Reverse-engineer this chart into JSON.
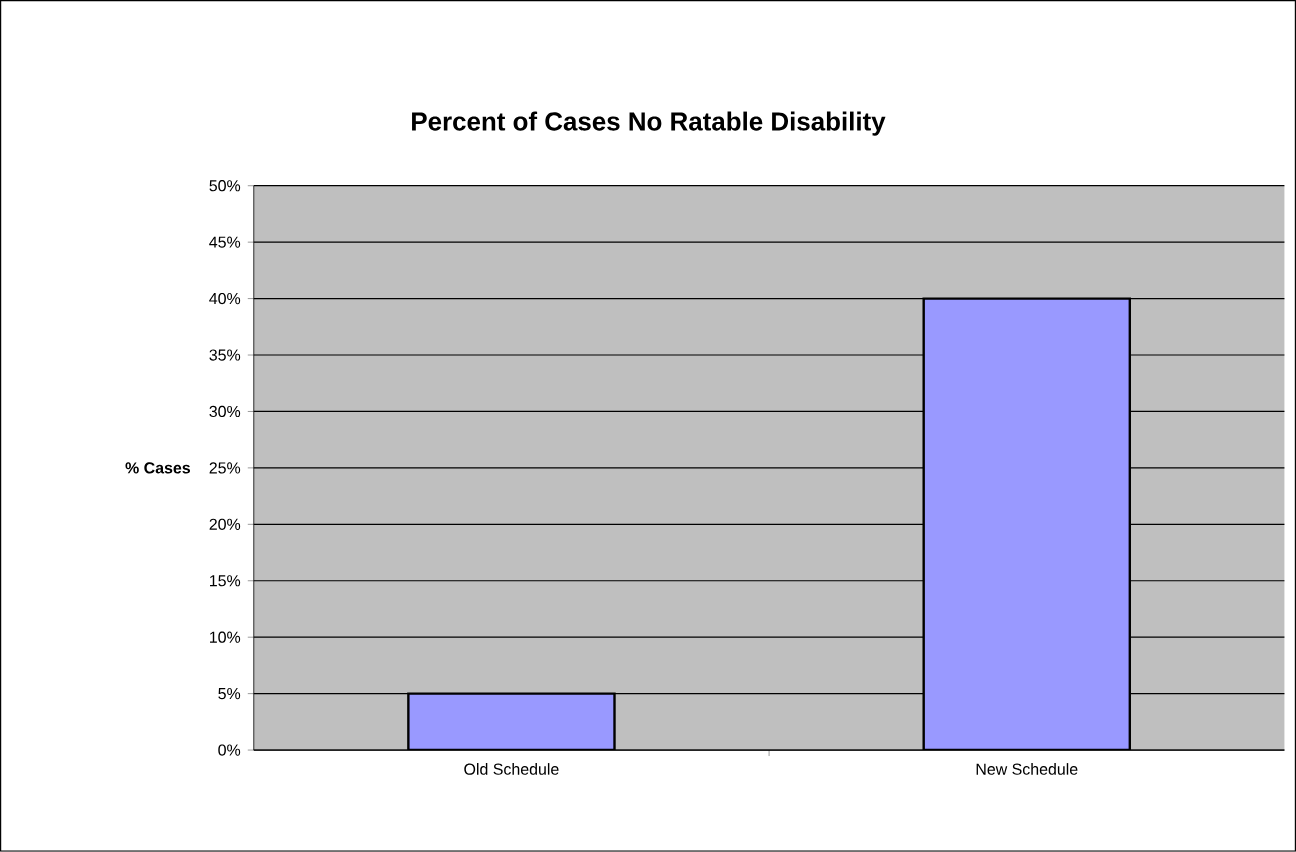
{
  "chart_data": {
    "type": "bar",
    "title": "Percent of Cases No Ratable Disability",
    "ylabel": "% Cases",
    "categories": [
      "Old Schedule",
      "New Schedule"
    ],
    "values": [
      5,
      40
    ],
    "color": "#9999ff",
    "ylim": [
      0,
      50
    ],
    "yticks": [
      {
        "value": 0,
        "label": "0%"
      },
      {
        "value": 5,
        "label": "5%"
      },
      {
        "value": 10,
        "label": "10%"
      },
      {
        "value": 15,
        "label": "15%"
      },
      {
        "value": 20,
        "label": "20%"
      },
      {
        "value": 25,
        "label": "25%"
      },
      {
        "value": 30,
        "label": "30%"
      },
      {
        "value": 35,
        "label": "35%"
      },
      {
        "value": 40,
        "label": "40%"
      },
      {
        "value": 45,
        "label": "45%"
      },
      {
        "value": 50,
        "label": "50%"
      }
    ],
    "grid": "y"
  }
}
